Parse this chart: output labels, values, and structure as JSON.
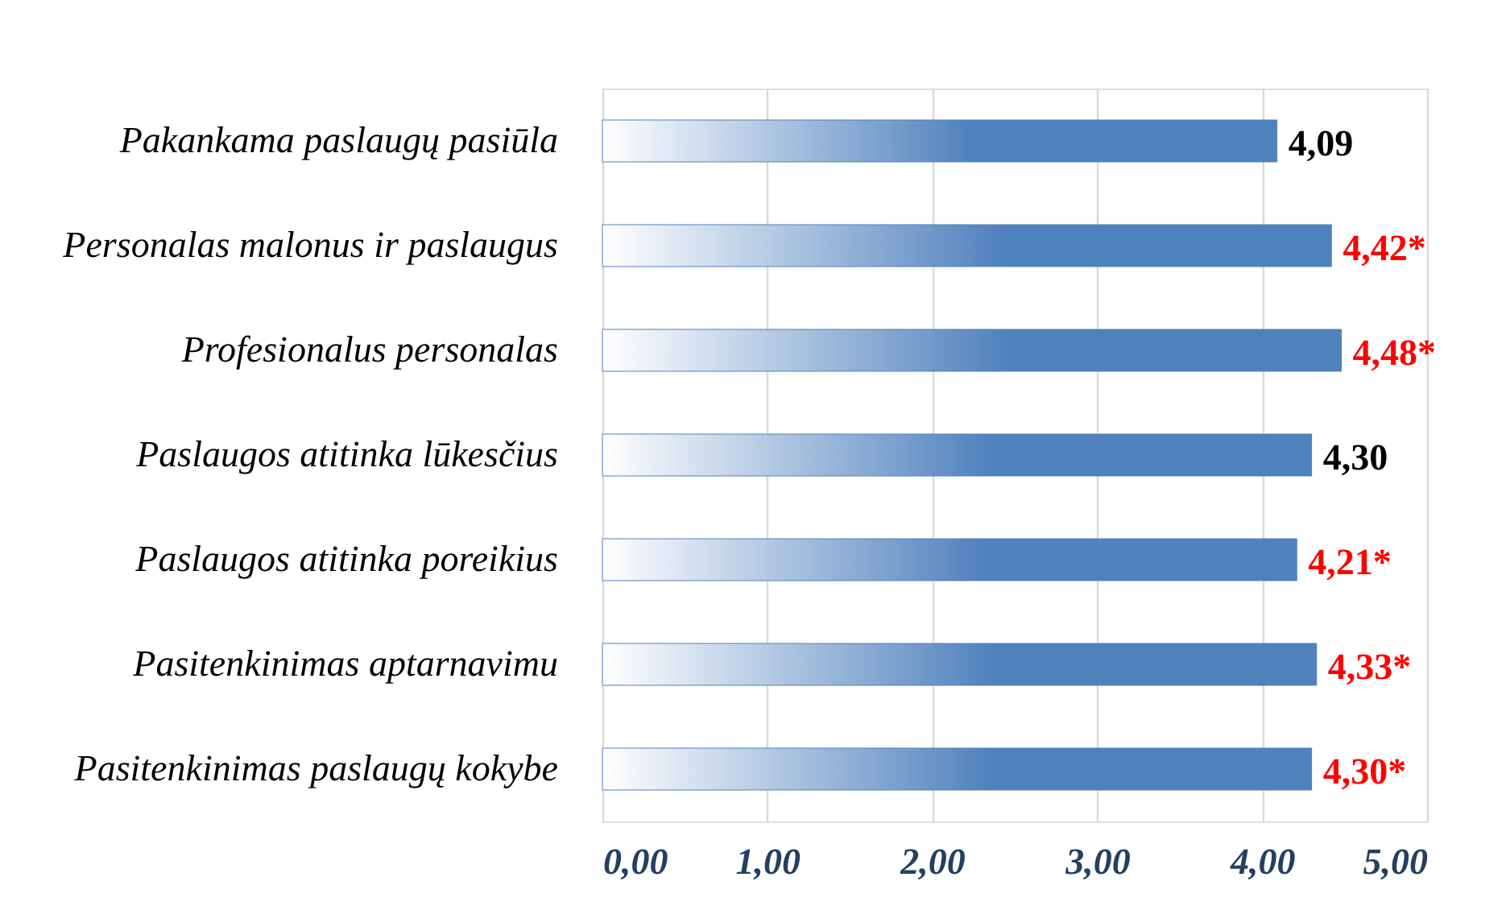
{
  "chart_data": {
    "type": "bar",
    "orientation": "horizontal",
    "categories": [
      "Pakankama paslaugų pasiūla",
      "Personalas malonus ir paslaugus",
      "Profesionalus personalas",
      "Paslaugos atitinka lūkesčius",
      "Paslaugos atitinka poreikius",
      "Pasitenkinimas aptarnavimu",
      "Pasitenkinimas paslaugų kokybe"
    ],
    "values": [
      4.09,
      4.42,
      4.48,
      4.3,
      4.21,
      4.33,
      4.3
    ],
    "color": "#4f81bd",
    "value_labels": [
      "4,09",
      "4,42*",
      "4,48*",
      "4,30",
      "4,21*",
      "4,33*",
      "4,30*"
    ],
    "xlim": [
      0,
      5
    ],
    "xticks": [
      {
        "value": 0,
        "label": "0,00"
      },
      {
        "value": 1,
        "label": "1,00"
      },
      {
        "value": 2,
        "label": "2,00"
      },
      {
        "value": 3,
        "label": "3,00"
      },
      {
        "value": 4,
        "label": "4,00"
      },
      {
        "value": 5,
        "label": "5,00"
      }
    ],
    "grid": "x"
  }
}
